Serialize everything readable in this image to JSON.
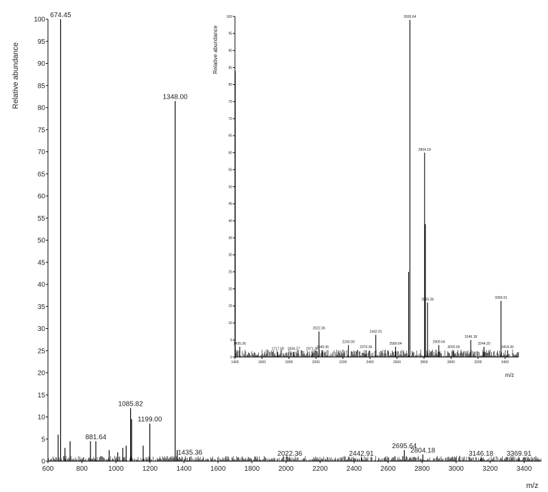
{
  "chart_data": [
    {
      "type": "line",
      "xlabel": "m/z",
      "ylabel": "Relative abundance",
      "xlim": [
        600,
        3500
      ],
      "ylim": [
        0,
        100
      ],
      "xticks": [
        600,
        800,
        1000,
        1200,
        1400,
        1600,
        1800,
        2000,
        2200,
        2400,
        2600,
        2800,
        3000,
        3200,
        3400
      ],
      "yticks": [
        0,
        5,
        10,
        15,
        20,
        25,
        30,
        35,
        40,
        45,
        50,
        55,
        60,
        65,
        70,
        75,
        80,
        85,
        90,
        95,
        100
      ],
      "grid": false,
      "peaks": [
        {
          "mz": 674.45,
          "intensity": 100,
          "label": "674.45"
        },
        {
          "mz": 660,
          "intensity": 6
        },
        {
          "mz": 700,
          "intensity": 3
        },
        {
          "mz": 730,
          "intensity": 4.5
        },
        {
          "mz": 850,
          "intensity": 4.5
        },
        {
          "mz": 881.64,
          "intensity": 4.5,
          "label": "881.64"
        },
        {
          "mz": 960,
          "intensity": 2.5
        },
        {
          "mz": 1010,
          "intensity": 2
        },
        {
          "mz": 1040,
          "intensity": 3
        },
        {
          "mz": 1060,
          "intensity": 3.5
        },
        {
          "mz": 1085.82,
          "intensity": 12,
          "label": "1085.82"
        },
        {
          "mz": 1092,
          "intensity": 9.5
        },
        {
          "mz": 1160,
          "intensity": 3.5
        },
        {
          "mz": 1199.0,
          "intensity": 8.5,
          "label": "1199.00"
        },
        {
          "mz": 1348.0,
          "intensity": 81.5,
          "label": "1348.00"
        },
        {
          "mz": 1360,
          "intensity": 2.5
        },
        {
          "mz": 1435.36,
          "intensity": 1,
          "label": "1435.36"
        },
        {
          "mz": 2022.36,
          "intensity": 0.8,
          "label": "2022.36"
        },
        {
          "mz": 2442.91,
          "intensity": 0.8,
          "label": "2442.91"
        },
        {
          "mz": 2695.64,
          "intensity": 2.5,
          "label": "2695.64"
        },
        {
          "mz": 2804.18,
          "intensity": 1.5,
          "label": "2804.18"
        },
        {
          "mz": 3146.18,
          "intensity": 0.8,
          "label": "3146.18"
        },
        {
          "mz": 3369.91,
          "intensity": 0.8,
          "label": "3369.91"
        }
      ]
    },
    {
      "type": "line",
      "inset": true,
      "xlabel": "m/z",
      "ylabel": "Relative abundance",
      "xlim": [
        1400,
        3500
      ],
      "ylim": [
        0,
        100
      ],
      "xticks": [
        1400,
        1600,
        1800,
        2000,
        2200,
        2400,
        2600,
        2800,
        3000,
        3200,
        3400
      ],
      "yticks": [
        0,
        5,
        10,
        15,
        20,
        25,
        30,
        35,
        40,
        45,
        50,
        55,
        60,
        65,
        70,
        75,
        80,
        85,
        90,
        95,
        100
      ],
      "grid": false,
      "peaks": [
        {
          "mz": 1402,
          "intensity": 84
        },
        {
          "mz": 1435.36,
          "intensity": 3,
          "label": "1435.36"
        },
        {
          "mz": 1717.0,
          "intensity": 1.5,
          "label": "1717.00"
        },
        {
          "mz": 1834.27,
          "intensity": 1.5,
          "label": "1834.27"
        },
        {
          "mz": 1971.36,
          "intensity": 1.5,
          "label": "1971.36"
        },
        {
          "mz": 2022.36,
          "intensity": 7.5,
          "label": "2022.36"
        },
        {
          "mz": 2049.36,
          "intensity": 2,
          "label": "2049.36"
        },
        {
          "mz": 2240.0,
          "intensity": 3.5,
          "label": "2240.00"
        },
        {
          "mz": 2370.36,
          "intensity": 2,
          "label": "2370.36"
        },
        {
          "mz": 2442.91,
          "intensity": 6.5,
          "label": "2442.91"
        },
        {
          "mz": 2589.64,
          "intensity": 3,
          "label": "2589.64"
        },
        {
          "mz": 2695.64,
          "intensity": 99,
          "label": "2695.64"
        },
        {
          "mz": 2686,
          "intensity": 25
        },
        {
          "mz": 2804.18,
          "intensity": 60,
          "label": "2804.18"
        },
        {
          "mz": 2810,
          "intensity": 39
        },
        {
          "mz": 2826.36,
          "intensity": 16,
          "label": "2826.36"
        },
        {
          "mz": 2909.64,
          "intensity": 3.5,
          "label": "2909.64"
        },
        {
          "mz": 3020.0,
          "intensity": 2,
          "label": "3020.00"
        },
        {
          "mz": 3146.18,
          "intensity": 5,
          "label": "3146.18"
        },
        {
          "mz": 3244.2,
          "intensity": 3,
          "label": "3244.20"
        },
        {
          "mz": 3369.91,
          "intensity": 16.5,
          "label": "3369.91"
        },
        {
          "mz": 3418.36,
          "intensity": 2,
          "label": "3418.36"
        }
      ]
    }
  ]
}
